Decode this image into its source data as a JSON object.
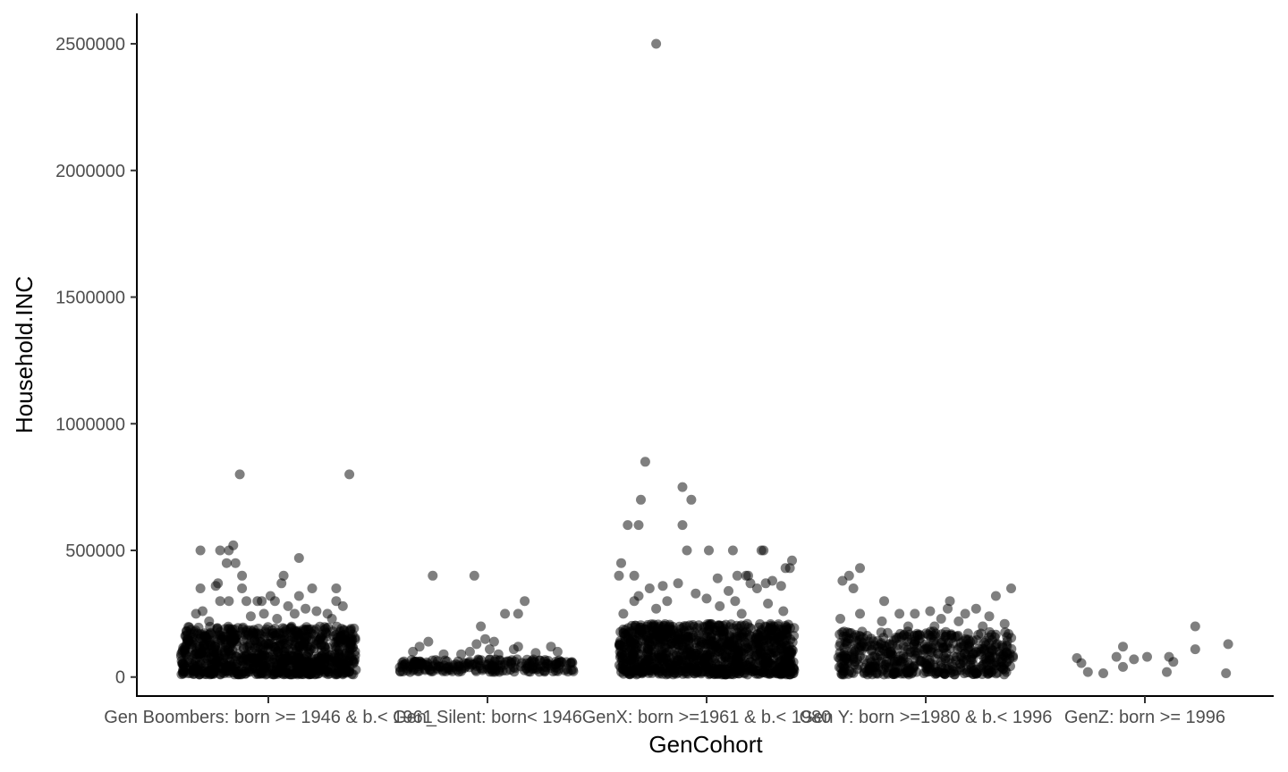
{
  "chart_data": {
    "type": "scatter",
    "title": "",
    "xlabel": "GenCohort",
    "ylabel": "Household.INC",
    "categories": [
      "Gen Boombers: born >= 1946 & b.< 1961",
      "Gen_Silent: born< 1946",
      "GenX: born >=1961 & b.< 1980",
      "Gen Y: born >=1980 & b.< 1996",
      "GenZ: born >= 1996"
    ],
    "yticks": [
      0,
      500000,
      1000000,
      1500000,
      2000000,
      2500000
    ],
    "ytick_labels": [
      "0",
      "500000",
      "1000000",
      "1500000",
      "2000000",
      "2500000"
    ],
    "ylim": [
      -75000,
      2620000
    ],
    "grid": false,
    "point_color": "#000000",
    "point_opacity": 0.5,
    "jitter": true,
    "series": [
      {
        "category": "Gen Boombers: born >= 1946 & b.< 1961",
        "dense_band": [
          10000,
          200000
        ],
        "dense_count": 900,
        "outliers": [
          {
            "x": -0.13,
            "y": 800000
          },
          {
            "x": 0.37,
            "y": 800000
          },
          {
            "x": -0.31,
            "y": 500000
          },
          {
            "x": -0.22,
            "y": 500000
          },
          {
            "x": -0.18,
            "y": 500000
          },
          {
            "x": -0.16,
            "y": 520000
          },
          {
            "x": -0.19,
            "y": 450000
          },
          {
            "x": -0.15,
            "y": 450000
          },
          {
            "x": 0.14,
            "y": 470000
          },
          {
            "x": 0.07,
            "y": 400000
          },
          {
            "x": -0.12,
            "y": 400000
          },
          {
            "x": 0.06,
            "y": 370000
          },
          {
            "x": -0.23,
            "y": 370000
          },
          {
            "x": -0.24,
            "y": 360000
          },
          {
            "x": -0.31,
            "y": 350000
          },
          {
            "x": -0.12,
            "y": 350000
          },
          {
            "x": 0.2,
            "y": 350000
          },
          {
            "x": 0.31,
            "y": 350000
          },
          {
            "x": 0.14,
            "y": 320000
          },
          {
            "x": 0.01,
            "y": 320000
          },
          {
            "x": -0.05,
            "y": 300000
          },
          {
            "x": -0.1,
            "y": 300000
          },
          {
            "x": -0.03,
            "y": 300000
          },
          {
            "x": 0.03,
            "y": 300000
          },
          {
            "x": 0.31,
            "y": 300000
          },
          {
            "x": -0.22,
            "y": 300000
          },
          {
            "x": -0.18,
            "y": 300000
          },
          {
            "x": 0.34,
            "y": 280000
          },
          {
            "x": 0.09,
            "y": 280000
          },
          {
            "x": 0.17,
            "y": 270000
          },
          {
            "x": -0.3,
            "y": 260000
          },
          {
            "x": 0.22,
            "y": 260000
          },
          {
            "x": 0.12,
            "y": 250000
          },
          {
            "x": 0.27,
            "y": 250000
          },
          {
            "x": -0.02,
            "y": 250000
          },
          {
            "x": -0.33,
            "y": 250000
          },
          {
            "x": -0.08,
            "y": 240000
          },
          {
            "x": 0.29,
            "y": 230000
          },
          {
            "x": 0.04,
            "y": 230000
          },
          {
            "x": -0.27,
            "y": 220000
          }
        ]
      },
      {
        "category": "Gen_Silent: born< 1946",
        "dense_band": [
          20000,
          70000
        ],
        "dense_count": 220,
        "outliers": [
          {
            "x": -0.25,
            "y": 400000
          },
          {
            "x": -0.06,
            "y": 400000
          },
          {
            "x": 0.17,
            "y": 300000
          },
          {
            "x": 0.08,
            "y": 250000
          },
          {
            "x": 0.14,
            "y": 250000
          },
          {
            "x": -0.03,
            "y": 200000
          },
          {
            "x": -0.01,
            "y": 150000
          },
          {
            "x": 0.03,
            "y": 140000
          },
          {
            "x": -0.05,
            "y": 130000
          },
          {
            "x": -0.27,
            "y": 140000
          },
          {
            "x": -0.31,
            "y": 120000
          },
          {
            "x": 0.29,
            "y": 120000
          },
          {
            "x": 0.14,
            "y": 120000
          },
          {
            "x": 0.12,
            "y": 110000
          },
          {
            "x": 0.01,
            "y": 110000
          },
          {
            "x": -0.34,
            "y": 100000
          },
          {
            "x": -0.08,
            "y": 100000
          },
          {
            "x": 0.32,
            "y": 100000
          },
          {
            "x": 0.22,
            "y": 95000
          },
          {
            "x": -0.2,
            "y": 90000
          },
          {
            "x": -0.12,
            "y": 90000
          },
          {
            "x": 0.05,
            "y": 90000
          }
        ]
      },
      {
        "category": "GenX: born >=1961 & b.< 1980",
        "dense_band": [
          10000,
          210000
        ],
        "dense_count": 1000,
        "outliers": [
          {
            "x": -0.23,
            "y": 2500000
          },
          {
            "x": -0.28,
            "y": 850000
          },
          {
            "x": -0.11,
            "y": 750000
          },
          {
            "x": -0.3,
            "y": 700000
          },
          {
            "x": -0.07,
            "y": 700000
          },
          {
            "x": -0.36,
            "y": 600000
          },
          {
            "x": -0.31,
            "y": 600000
          },
          {
            "x": -0.11,
            "y": 600000
          },
          {
            "x": -0.09,
            "y": 500000
          },
          {
            "x": 0.01,
            "y": 500000
          },
          {
            "x": 0.12,
            "y": 500000
          },
          {
            "x": 0.25,
            "y": 500000
          },
          {
            "x": 0.26,
            "y": 500000
          },
          {
            "x": 0.39,
            "y": 460000
          },
          {
            "x": -0.39,
            "y": 450000
          },
          {
            "x": 0.36,
            "y": 430000
          },
          {
            "x": 0.38,
            "y": 430000
          },
          {
            "x": -0.4,
            "y": 400000
          },
          {
            "x": -0.33,
            "y": 400000
          },
          {
            "x": 0.14,
            "y": 400000
          },
          {
            "x": 0.18,
            "y": 400000
          },
          {
            "x": 0.19,
            "y": 400000
          },
          {
            "x": 0.05,
            "y": 390000
          },
          {
            "x": 0.3,
            "y": 380000
          },
          {
            "x": 0.27,
            "y": 370000
          },
          {
            "x": -0.13,
            "y": 370000
          },
          {
            "x": 0.2,
            "y": 370000
          },
          {
            "x": -0.2,
            "y": 360000
          },
          {
            "x": 0.34,
            "y": 360000
          },
          {
            "x": -0.26,
            "y": 350000
          },
          {
            "x": 0.23,
            "y": 350000
          },
          {
            "x": 0.1,
            "y": 340000
          },
          {
            "x": -0.05,
            "y": 330000
          },
          {
            "x": -0.31,
            "y": 320000
          },
          {
            "x": 0.0,
            "y": 310000
          },
          {
            "x": 0.13,
            "y": 300000
          },
          {
            "x": -0.33,
            "y": 300000
          },
          {
            "x": -0.18,
            "y": 300000
          },
          {
            "x": 0.28,
            "y": 290000
          },
          {
            "x": 0.06,
            "y": 280000
          },
          {
            "x": -0.23,
            "y": 270000
          },
          {
            "x": 0.35,
            "y": 260000
          },
          {
            "x": 0.16,
            "y": 250000
          },
          {
            "x": -0.38,
            "y": 250000
          }
        ]
      },
      {
        "category": "Gen Y: born >=1980 & b.< 1996",
        "dense_band": [
          10000,
          180000
        ],
        "dense_count": 500,
        "outliers": [
          {
            "x": -0.3,
            "y": 430000
          },
          {
            "x": -0.35,
            "y": 400000
          },
          {
            "x": -0.38,
            "y": 380000
          },
          {
            "x": -0.33,
            "y": 350000
          },
          {
            "x": 0.39,
            "y": 350000
          },
          {
            "x": 0.32,
            "y": 320000
          },
          {
            "x": -0.19,
            "y": 300000
          },
          {
            "x": 0.11,
            "y": 300000
          },
          {
            "x": 0.23,
            "y": 270000
          },
          {
            "x": 0.1,
            "y": 270000
          },
          {
            "x": 0.02,
            "y": 260000
          },
          {
            "x": -0.12,
            "y": 250000
          },
          {
            "x": -0.05,
            "y": 250000
          },
          {
            "x": 0.18,
            "y": 250000
          },
          {
            "x": -0.3,
            "y": 250000
          },
          {
            "x": 0.29,
            "y": 240000
          },
          {
            "x": 0.07,
            "y": 230000
          },
          {
            "x": -0.39,
            "y": 230000
          },
          {
            "x": -0.2,
            "y": 220000
          },
          {
            "x": 0.15,
            "y": 220000
          },
          {
            "x": 0.36,
            "y": 210000
          },
          {
            "x": -0.08,
            "y": 200000
          },
          {
            "x": 0.04,
            "y": 200000
          },
          {
            "x": 0.26,
            "y": 200000
          }
        ]
      },
      {
        "category": "GenZ: born >= 1996",
        "dense_band": [
          0,
          0
        ],
        "dense_count": 0,
        "outliers": [
          {
            "x": -0.31,
            "y": 75000
          },
          {
            "x": -0.29,
            "y": 55000
          },
          {
            "x": -0.26,
            "y": 20000
          },
          {
            "x": -0.19,
            "y": 15000
          },
          {
            "x": -0.13,
            "y": 80000
          },
          {
            "x": -0.1,
            "y": 120000
          },
          {
            "x": -0.1,
            "y": 40000
          },
          {
            "x": -0.05,
            "y": 70000
          },
          {
            "x": 0.01,
            "y": 80000
          },
          {
            "x": 0.1,
            "y": 20000
          },
          {
            "x": 0.11,
            "y": 80000
          },
          {
            "x": 0.13,
            "y": 60000
          },
          {
            "x": 0.23,
            "y": 200000
          },
          {
            "x": 0.23,
            "y": 110000
          },
          {
            "x": 0.38,
            "y": 130000
          },
          {
            "x": 0.37,
            "y": 15000
          }
        ]
      }
    ]
  }
}
